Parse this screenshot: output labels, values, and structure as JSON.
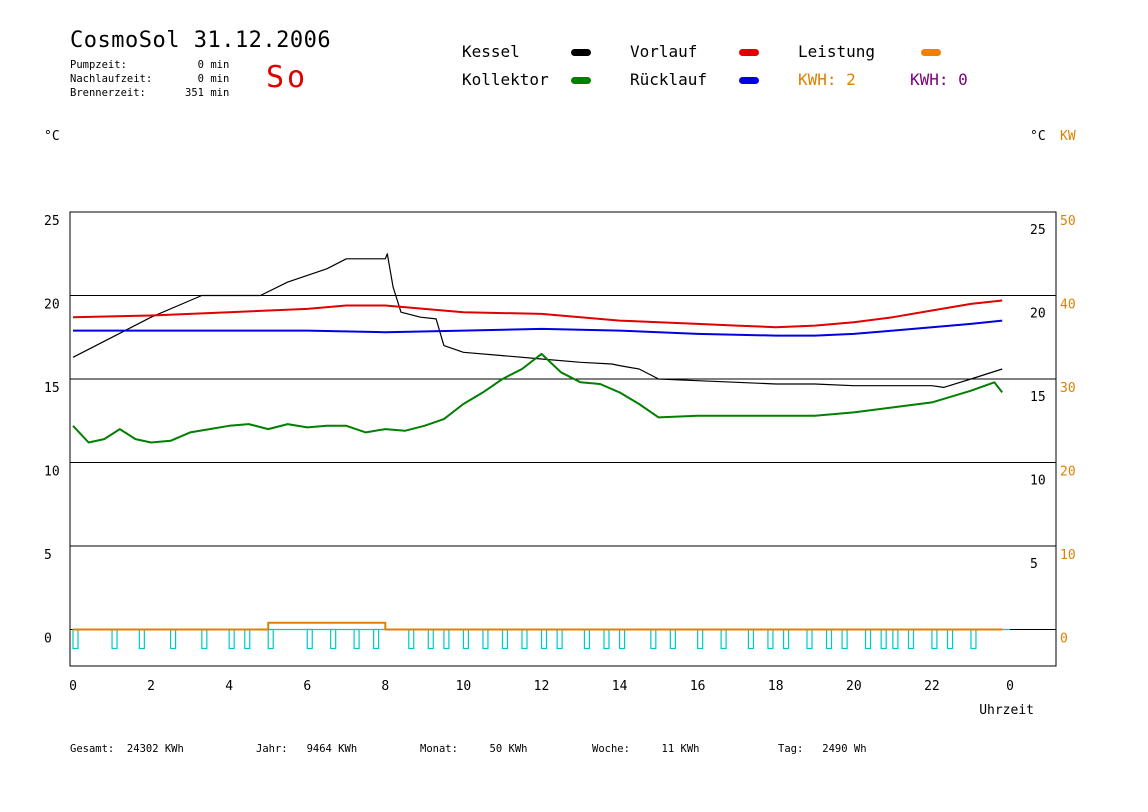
{
  "header": {
    "title": "CosmoSol 31.12.2006",
    "day": "So",
    "info": [
      {
        "label": "Pumpzeit:",
        "value": "0",
        "unit": "min"
      },
      {
        "label": "Nachlaufzeit:",
        "value": "0",
        "unit": "min"
      },
      {
        "label": "Brennerzeit:",
        "value": "351",
        "unit": "min"
      }
    ]
  },
  "legend": {
    "items": [
      {
        "label": "Kessel",
        "color": "#000000"
      },
      {
        "label": "Vorlauf",
        "color": "#e00000"
      },
      {
        "label": "Leistung",
        "color": "#f08000"
      },
      {
        "label": "Kollektor",
        "color": "#008000"
      },
      {
        "label": "Rücklauf",
        "color": "#0000e0"
      }
    ],
    "kwh1": "KWH: 2",
    "kwh1_color": "#e08000",
    "kwh2": "KWH: 0",
    "kwh2_color": "#800080"
  },
  "chart_data": {
    "type": "line",
    "xlabel": "Uhrzeit",
    "x_ticks": [
      "0",
      "2",
      "4",
      "6",
      "8",
      "10",
      "12",
      "14",
      "16",
      "18",
      "20",
      "22",
      "0"
    ],
    "xlim": [
      0,
      24
    ],
    "ylabel_left": "°C",
    "ylabel_right": "°C",
    "ylabel_right2": "KW",
    "ylim": [
      -2,
      25
    ],
    "y_ticks_left": [
      "25",
      "20",
      "15",
      "10",
      "5",
      "0"
    ],
    "y_ticks_right": [
      "25",
      "20",
      "15",
      "10",
      "5"
    ],
    "y_ticks_kw": [
      "50",
      "40",
      "30",
      "20",
      "10",
      "0"
    ],
    "kw_color": "#e08000",
    "grid_lines_y": [
      20,
      15,
      10,
      5,
      0
    ],
    "series": [
      {
        "name": "Kessel",
        "color": "#000000",
        "x": [
          0,
          1,
          2,
          3,
          3.3,
          4.8,
          5.5,
          6.5,
          7.0,
          8.0,
          8.05,
          8.2,
          8.4,
          8.9,
          9.3,
          9.5,
          10,
          11,
          12,
          13,
          13.8,
          14,
          14.5,
          15,
          16,
          17,
          18,
          19,
          20,
          21,
          22,
          22.3,
          23,
          23.8
        ],
        "y": [
          16.3,
          17.5,
          18.7,
          19.7,
          20.0,
          20.0,
          20.8,
          21.6,
          22.2,
          22.2,
          22.5,
          20.5,
          19.0,
          18.7,
          18.6,
          17.0,
          16.6,
          16.4,
          16.2,
          16.0,
          15.9,
          15.8,
          15.6,
          15.0,
          14.9,
          14.8,
          14.7,
          14.7,
          14.6,
          14.6,
          14.6,
          14.5,
          15.0,
          15.6
        ]
      },
      {
        "name": "Vorlauf",
        "color": "#e00000",
        "x": [
          0,
          2,
          4,
          6,
          7,
          8,
          9,
          10,
          12,
          14,
          16,
          17,
          18,
          19,
          20,
          21,
          22,
          23,
          23.8
        ],
        "y": [
          18.7,
          18.8,
          19.0,
          19.2,
          19.4,
          19.4,
          19.2,
          19.0,
          18.9,
          18.5,
          18.3,
          18.2,
          18.1,
          18.2,
          18.4,
          18.7,
          19.1,
          19.5,
          19.7
        ]
      },
      {
        "name": "Rücklauf",
        "color": "#0000e0",
        "x": [
          0,
          2,
          4,
          6,
          8,
          10,
          12,
          14,
          16,
          18,
          19,
          20,
          21,
          22,
          23,
          23.8
        ],
        "y": [
          17.9,
          17.9,
          17.9,
          17.9,
          17.8,
          17.9,
          18.0,
          17.9,
          17.7,
          17.6,
          17.6,
          17.7,
          17.9,
          18.1,
          18.3,
          18.5
        ]
      },
      {
        "name": "Kollektor",
        "color": "#008000",
        "x": [
          0,
          0.4,
          0.8,
          1.2,
          1.6,
          2.0,
          2.5,
          3.0,
          3.5,
          4.0,
          4.5,
          5.0,
          5.5,
          6.0,
          6.5,
          7.0,
          7.5,
          8.0,
          8.5,
          9.0,
          9.5,
          10.0,
          10.5,
          11.0,
          11.5,
          12.0,
          12.5,
          13.0,
          13.5,
          14.0,
          14.5,
          15.0,
          16.0,
          17.0,
          18.0,
          19.0,
          20.0,
          21.0,
          22.0,
          23.0,
          23.6,
          23.8
        ],
        "y": [
          12.2,
          11.2,
          11.4,
          12.0,
          11.4,
          11.2,
          11.3,
          11.8,
          12.0,
          12.2,
          12.3,
          12.0,
          12.3,
          12.1,
          12.2,
          12.2,
          11.8,
          12.0,
          11.9,
          12.2,
          12.6,
          13.5,
          14.2,
          15.0,
          15.6,
          16.5,
          15.4,
          14.8,
          14.7,
          14.2,
          13.5,
          12.7,
          12.8,
          12.8,
          12.8,
          12.8,
          13.0,
          13.3,
          13.6,
          14.3,
          14.8,
          14.2
        ]
      },
      {
        "name": "Leistung",
        "color": "#e08000",
        "x": [
          0,
          5.0,
          5.0,
          8.0,
          8.0,
          23.8
        ],
        "y": [
          0,
          0,
          0.4,
          0.4,
          0,
          0
        ]
      }
    ],
    "pump_pulses": {
      "color": "#00c8c8",
      "baseline": 0,
      "x": [
        0.0,
        1.0,
        1.7,
        2.5,
        3.3,
        4.0,
        4.4,
        5.0,
        6.0,
        6.6,
        7.2,
        7.7,
        8.6,
        9.1,
        9.5,
        10.0,
        10.5,
        11.0,
        11.5,
        12.0,
        12.4,
        13.1,
        13.6,
        14.0,
        14.8,
        15.3,
        16.0,
        16.6,
        17.3,
        17.8,
        18.2,
        18.8,
        19.3,
        19.7,
        20.3,
        20.7,
        21.0,
        21.4,
        22.0,
        22.4,
        23.0
      ]
    }
  },
  "footer": [
    {
      "label": "Gesamt:",
      "value": "24302 KWh"
    },
    {
      "label": "Jahr:",
      "value": "9464 KWh"
    },
    {
      "label": "Monat:",
      "value": "50 KWh"
    },
    {
      "label": "Woche:",
      "value": "11 KWh"
    },
    {
      "label": "Tag:",
      "value": "2490 Wh"
    }
  ]
}
